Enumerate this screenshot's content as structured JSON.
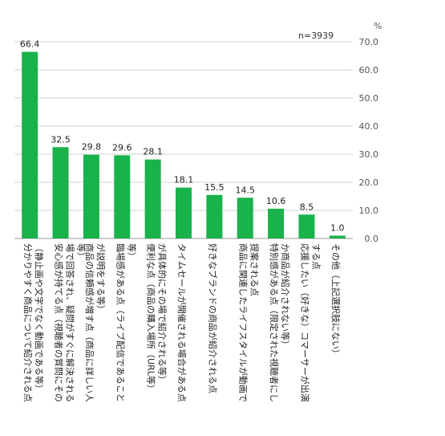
{
  "chart_data": {
    "type": "bar",
    "unit": "%",
    "note": "n=3939",
    "ylim": [
      0,
      70
    ],
    "yticks": [
      "0.0",
      "10.0",
      "20.0",
      "30.0",
      "40.0",
      "50.0",
      "60.0",
      "70.0"
    ],
    "grid": true,
    "bar_color": "#19b24b",
    "categories": [
      "分かりやすく商品について紹介される点（静止画や文字でなく動画である等）",
      "安心感が持てる点（視聴者の質問にその場で回答され、疑問がすぐに解決される等）",
      "商品の信頼感が増す点（商品に詳しい人が説明をする等）",
      "臨場感がある点（ライブ配信であること等）",
      "便利な点（商品の購入場所（URL等）が具体的にその場で紹介される等）",
      "タイムセールが開催される場合がある点",
      "好きなブランドの商品が紹介される点",
      "商品に関連したライフスタイルが動画で提案される点",
      "特別感がある点（限定された視聴者にしか商品が紹介されない等）",
      "応援したい（好きな）コマーサーが出演する点",
      "その他（上記選択肢にない）"
    ],
    "values": [
      66.4,
      32.5,
      29.8,
      29.6,
      28.1,
      18.1,
      15.5,
      14.5,
      10.6,
      8.5,
      1.0
    ],
    "value_labels": [
      "66.4",
      "32.5",
      "29.8",
      "29.6",
      "28.1",
      "18.1",
      "15.5",
      "14.5",
      "10.6",
      "8.5",
      "1.0"
    ]
  }
}
